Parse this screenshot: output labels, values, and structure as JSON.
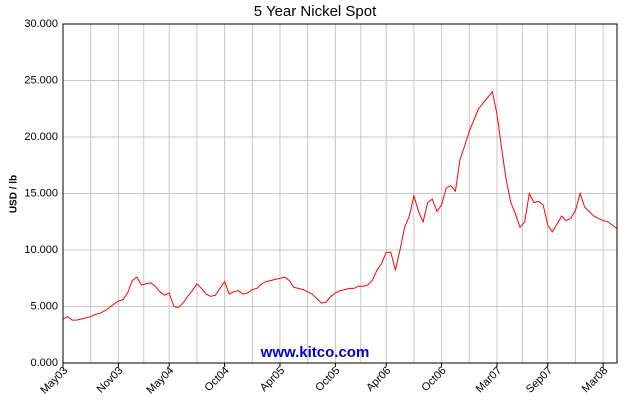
{
  "chart_data": {
    "type": "line",
    "title": "5 Year Nickel Spot",
    "ylabel": "USD / lb",
    "watermark": "www.kitco.com",
    "color": "#ff0000",
    "grid": true,
    "ylim": [
      0,
      30
    ],
    "yticks": [
      {
        "value": 0,
        "label": "0.000"
      },
      {
        "value": 5,
        "label": "5.000"
      },
      {
        "value": 10,
        "label": "10.000"
      },
      {
        "value": 15,
        "label": "15.000"
      },
      {
        "value": 20,
        "label": "20.000"
      },
      {
        "value": 25,
        "label": "25.000"
      },
      {
        "value": 30,
        "label": "30.000"
      }
    ],
    "categories": [
      "May03",
      null,
      null,
      null,
      null,
      null,
      null,
      null,
      null,
      null,
      null,
      null,
      "Nov03",
      null,
      null,
      null,
      null,
      null,
      null,
      null,
      null,
      null,
      null,
      "May04",
      null,
      null,
      null,
      null,
      null,
      null,
      null,
      null,
      null,
      null,
      null,
      "Oct04",
      null,
      null,
      null,
      null,
      null,
      null,
      null,
      null,
      null,
      null,
      null,
      "Apr05",
      null,
      null,
      null,
      null,
      null,
      null,
      null,
      null,
      null,
      null,
      null,
      "Oct05",
      null,
      null,
      null,
      null,
      null,
      null,
      null,
      null,
      null,
      null,
      "Apr06",
      null,
      null,
      null,
      null,
      null,
      null,
      null,
      null,
      null,
      null,
      null,
      "Oct06",
      null,
      null,
      null,
      null,
      null,
      null,
      null,
      null,
      null,
      null,
      null,
      "Mar07",
      null,
      null,
      null,
      null,
      null,
      null,
      null,
      null,
      null,
      null,
      "Sep07",
      null,
      null,
      null,
      null,
      null,
      null,
      null,
      null,
      null,
      null,
      null,
      "Mar08",
      null,
      null,
      null
    ],
    "values": [
      3.9,
      4.1,
      3.8,
      3.8,
      3.9,
      4.0,
      4.1,
      4.3,
      4.4,
      4.6,
      4.9,
      5.2,
      5.5,
      5.6,
      6.2,
      7.3,
      7.6,
      6.9,
      7.0,
      7.1,
      6.8,
      6.3,
      6.0,
      6.2,
      5.0,
      4.9,
      5.3,
      5.9,
      6.4,
      7.0,
      6.6,
      6.1,
      5.9,
      6.0,
      6.6,
      7.2,
      6.1,
      6.3,
      6.4,
      6.1,
      6.2,
      6.5,
      6.6,
      7.0,
      7.2,
      7.3,
      7.4,
      7.5,
      7.6,
      7.3,
      6.7,
      6.6,
      6.5,
      6.3,
      6.1,
      5.7,
      5.3,
      5.4,
      5.9,
      6.2,
      6.4,
      6.5,
      6.6,
      6.6,
      6.8,
      6.8,
      6.9,
      7.3,
      8.2,
      8.8,
      9.8,
      9.8,
      8.2,
      10.0,
      12.0,
      13.0,
      14.8,
      13.4,
      12.5,
      14.2,
      14.5,
      13.4,
      14.0,
      15.5,
      15.7,
      15.2,
      18.0,
      19.2,
      20.5,
      21.5,
      22.5,
      23.0,
      23.5,
      24.0,
      22.0,
      19.0,
      16.2,
      14.2,
      13.2,
      12.0,
      12.5,
      15.0,
      14.2,
      14.3,
      14.0,
      12.2,
      11.6,
      12.3,
      13.0,
      12.6,
      12.8,
      13.5,
      15.0,
      13.8,
      13.4,
      13.0,
      12.8,
      12.6,
      12.5,
      12.2,
      11.9
    ]
  }
}
